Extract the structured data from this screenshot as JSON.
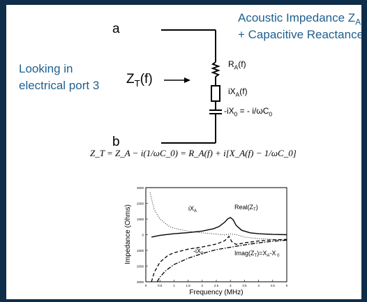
{
  "slide": {
    "title_line1": "Acoustic Impedance Z",
    "title_line1_sub": "A",
    "title_line2": "+ Capacitive Reactance",
    "looking_line1": "Looking in",
    "looking_line2": "electrical port 3"
  },
  "circuit": {
    "node_a": "a",
    "node_b": "b",
    "zt_main": "Z",
    "zt_sub": "T",
    "zt_tail": "(f)",
    "ra_main": "R",
    "ra_sub": "A",
    "ra_tail": "(f)",
    "ixa_main": "iX",
    "ixa_sub": "A",
    "ixa_tail": "(f)",
    "ix0_main": "-iX",
    "ix0_sub": "0",
    "ix0_tail": " = - i/ωC",
    "ix0_tail_sub": "0"
  },
  "equation": "Z_T = Z_A − i(1/ωC_0) = R_A(f) + i[X_A(f) − 1/ωC_0]",
  "chart_data": {
    "type": "line",
    "xlabel": "Frequency (MHz)",
    "ylabel": "Impedance (Ohms)",
    "xlim": [
      0,
      5
    ],
    "ylim": [
      -3000,
      3000
    ],
    "x_ticks": [
      "0",
      "0.5",
      "1",
      "1.5",
      "2",
      "2.5",
      "3",
      "3.5",
      "4",
      "4.5",
      "5"
    ],
    "y_ticks": [
      "3000",
      "2000",
      "1000",
      "0",
      "1000",
      "2000",
      "3000"
    ],
    "annotations": [
      "iX",
      "Real(Z",
      "-iX",
      "Imag(Z"
    ],
    "series": [
      {
        "style": "solid",
        "x": [
          0.2,
          0.5,
          1.0,
          1.5,
          2.0,
          2.4,
          2.6,
          2.8,
          2.9,
          3.0,
          3.1,
          3.2,
          3.4,
          3.7,
          4.0,
          4.5,
          5.0
        ],
        "y": [
          -150,
          -40,
          60,
          130,
          230,
          380,
          520,
          800,
          1000,
          1100,
          950,
          600,
          280,
          120,
          60,
          20,
          0
        ]
      },
      {
        "style": "dotted",
        "x": [
          0.15,
          0.2,
          0.3,
          0.5,
          0.8,
          1.0,
          1.5,
          2.0,
          2.5,
          2.8,
          3.0,
          3.2,
          3.5,
          4.0,
          4.5,
          5.0
        ],
        "y": [
          2700,
          2300,
          1600,
          1000,
          560,
          420,
          220,
          120,
          40,
          -20,
          40,
          10,
          -150,
          -250,
          -300,
          -350
        ]
      },
      {
        "style": "dashed",
        "x": [
          0.2,
          0.3,
          0.5,
          0.8,
          1.0,
          1.5,
          2.0,
          2.5,
          2.8,
          2.95,
          3.05,
          3.2,
          3.5,
          4.0,
          4.5,
          5.0
        ],
        "y": [
          -3000,
          -2400,
          -1750,
          -1300,
          -1150,
          -920,
          -780,
          -600,
          -380,
          -100,
          -450,
          -620,
          -520,
          -400,
          -330,
          -300
        ]
      },
      {
        "style": "dashdot",
        "x": [
          0.4,
          0.5,
          0.7,
          1.0,
          1.5,
          2.0,
          2.5,
          3.0,
          3.5,
          4.0,
          4.5,
          5.0
        ],
        "y": [
          -3000,
          -2700,
          -2300,
          -1900,
          -1500,
          -1200,
          -950,
          -800,
          -650,
          -520,
          -420,
          -350
        ]
      }
    ]
  }
}
